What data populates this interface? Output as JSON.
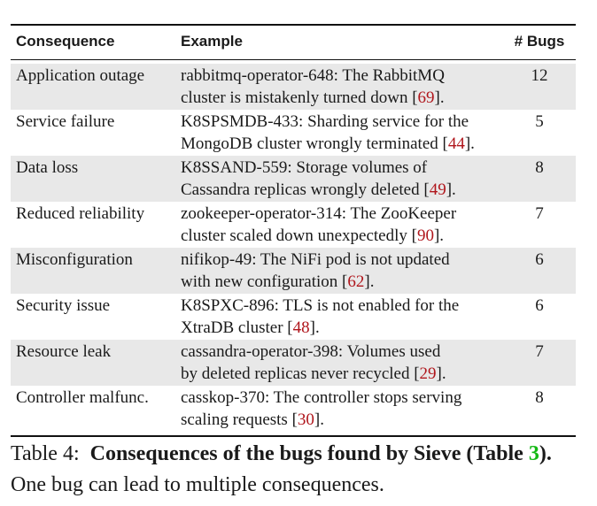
{
  "table": {
    "headers": [
      "Consequence",
      "Example",
      "# Bugs"
    ],
    "rows": [
      {
        "consequence": "Application outage",
        "line1": "rabbitmq-operator-648: The RabbitMQ",
        "line2_pre": "cluster is mistakenly turned down [",
        "ref": "69",
        "line2_post": "].",
        "bugs": "12"
      },
      {
        "consequence": "Service failure",
        "line1": "K8SPSMDB-433: Sharding service for the",
        "line2_pre": "MongoDB cluster wrongly terminated [",
        "ref": "44",
        "line2_post": "].",
        "bugs": "5"
      },
      {
        "consequence": "Data loss",
        "line1": "K8SSAND-559: Storage volumes of",
        "line2_pre": "Cassandra replicas wrongly deleted [",
        "ref": "49",
        "line2_post": "].",
        "bugs": "8"
      },
      {
        "consequence": "Reduced reliability",
        "line1": "zookeeper-operator-314: The ZooKeeper",
        "line2_pre": "cluster scaled down unexpectedly [",
        "ref": "90",
        "line2_post": "].",
        "bugs": "7"
      },
      {
        "consequence": "Misconfiguration",
        "line1": "nifikop-49: The NiFi pod is not updated",
        "line2_pre": "with new configuration [",
        "ref": "62",
        "line2_post": "].",
        "bugs": "6"
      },
      {
        "consequence": "Security issue",
        "line1": "K8SPXC-896: TLS is not enabled for the",
        "line2_pre": "XtraDB cluster [",
        "ref": "48",
        "line2_post": "].",
        "bugs": "6"
      },
      {
        "consequence": "Resource leak",
        "line1": "cassandra-operator-398: Volumes used",
        "line2_pre": "by deleted replicas never recycled [",
        "ref": "29",
        "line2_post": "].",
        "bugs": "7"
      },
      {
        "consequence": "Controller malfunc.",
        "line1": "casskop-370: The controller stops serving",
        "line2_pre": "scaling requests [",
        "ref": "30",
        "line2_post": "].",
        "bugs": "8"
      }
    ]
  },
  "caption": {
    "label": "Table 4:",
    "bold_text": "Consequences of the bugs found by Sieve (Table ",
    "table_ref": "3",
    "bold_close": ").",
    "rest": " One bug can lead to multiple consequences."
  }
}
